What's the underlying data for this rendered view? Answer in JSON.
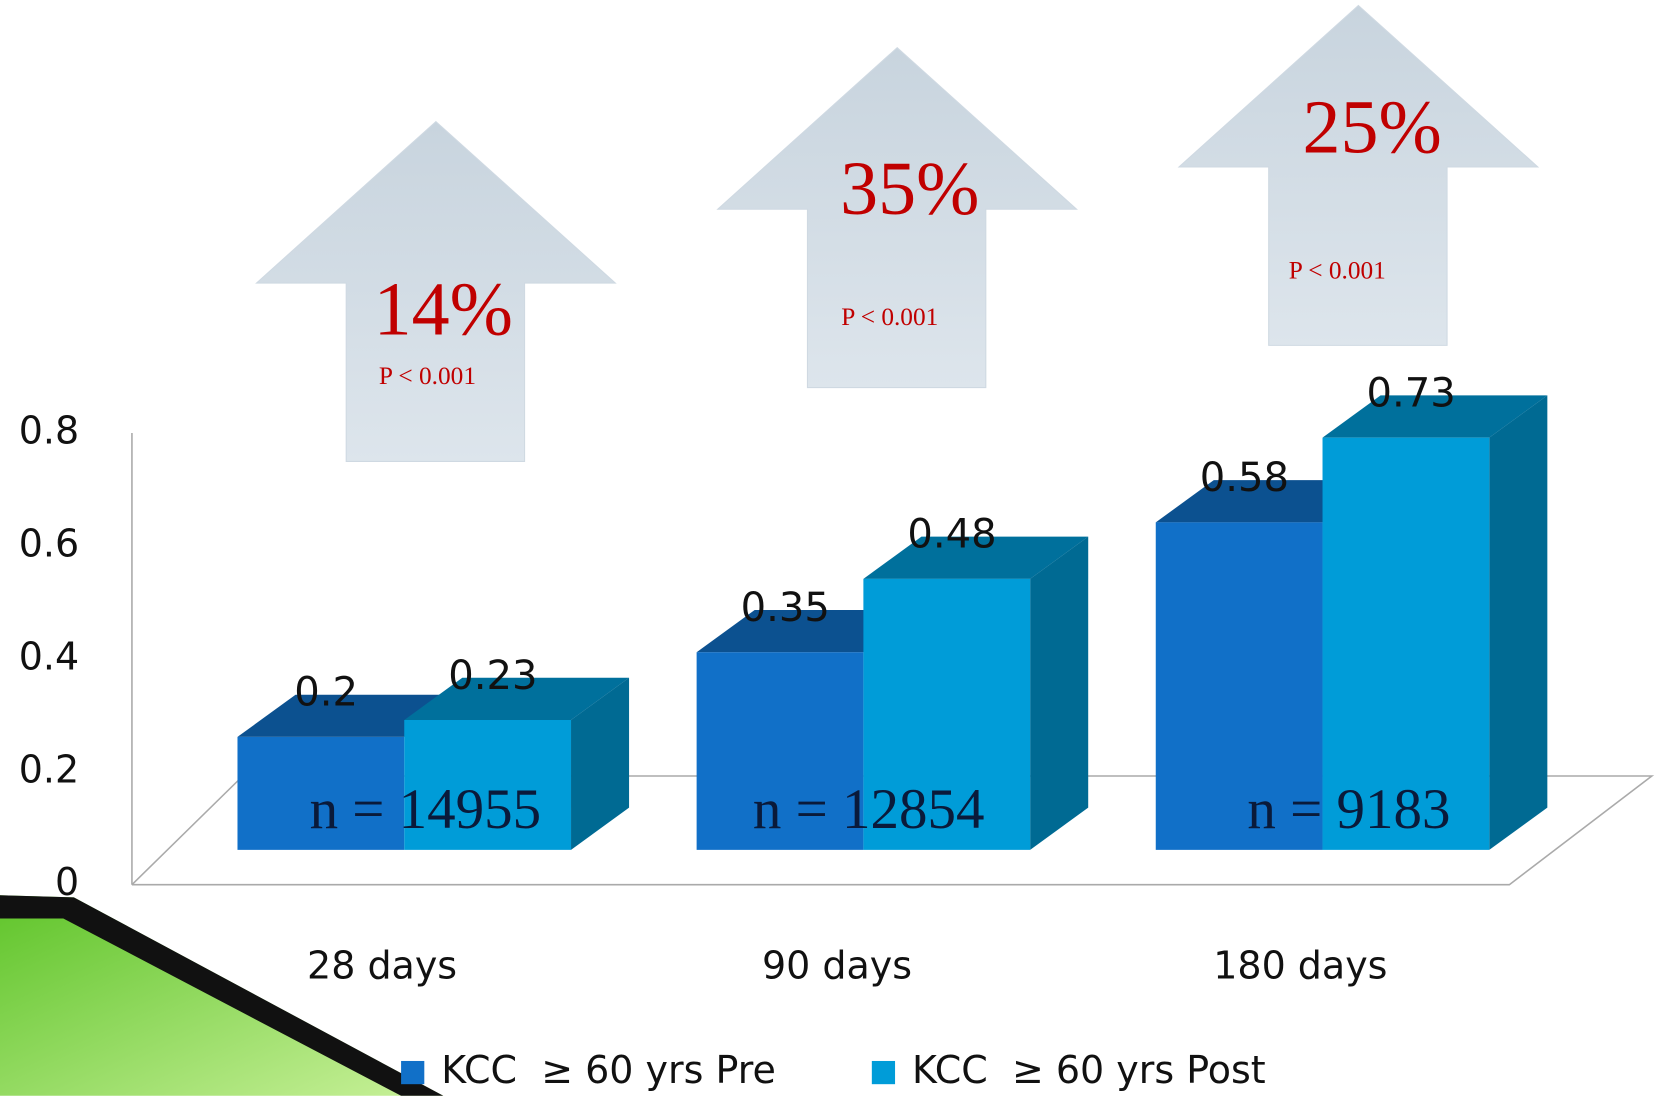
{
  "chart_data": {
    "type": "bar3d",
    "categories": [
      "28 days",
      "90 days",
      "180 days"
    ],
    "series": [
      {
        "name": "KCC  ≥ 60 yrs Pre",
        "color": "#1170c8",
        "values": [
          0.2,
          0.35,
          0.58
        ]
      },
      {
        "name": "KCC  ≥ 60 yrs Post",
        "color": "#009cd8",
        "values": [
          0.23,
          0.48,
          0.73
        ]
      }
    ],
    "ylim": [
      0,
      0.8
    ],
    "yticks": [
      0,
      0.2,
      0.4,
      0.6,
      0.8
    ],
    "annotations": [
      {
        "change": "14%",
        "p_value": "P < 0.001",
        "sample": "n = 14955"
      },
      {
        "change": "35%",
        "p_value": "P < 0.001",
        "sample": "n = 12854"
      },
      {
        "change": "25%",
        "p_value": "P < 0.001",
        "sample": "n = 9183"
      }
    ]
  }
}
